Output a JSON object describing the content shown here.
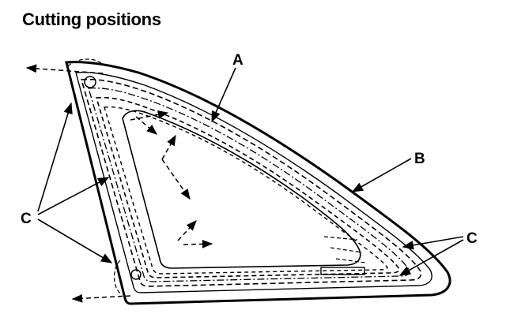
{
  "title": "Cutting positions",
  "callouts": {
    "a": "A",
    "b": "B",
    "c_left": "C",
    "c_right": "C"
  }
}
